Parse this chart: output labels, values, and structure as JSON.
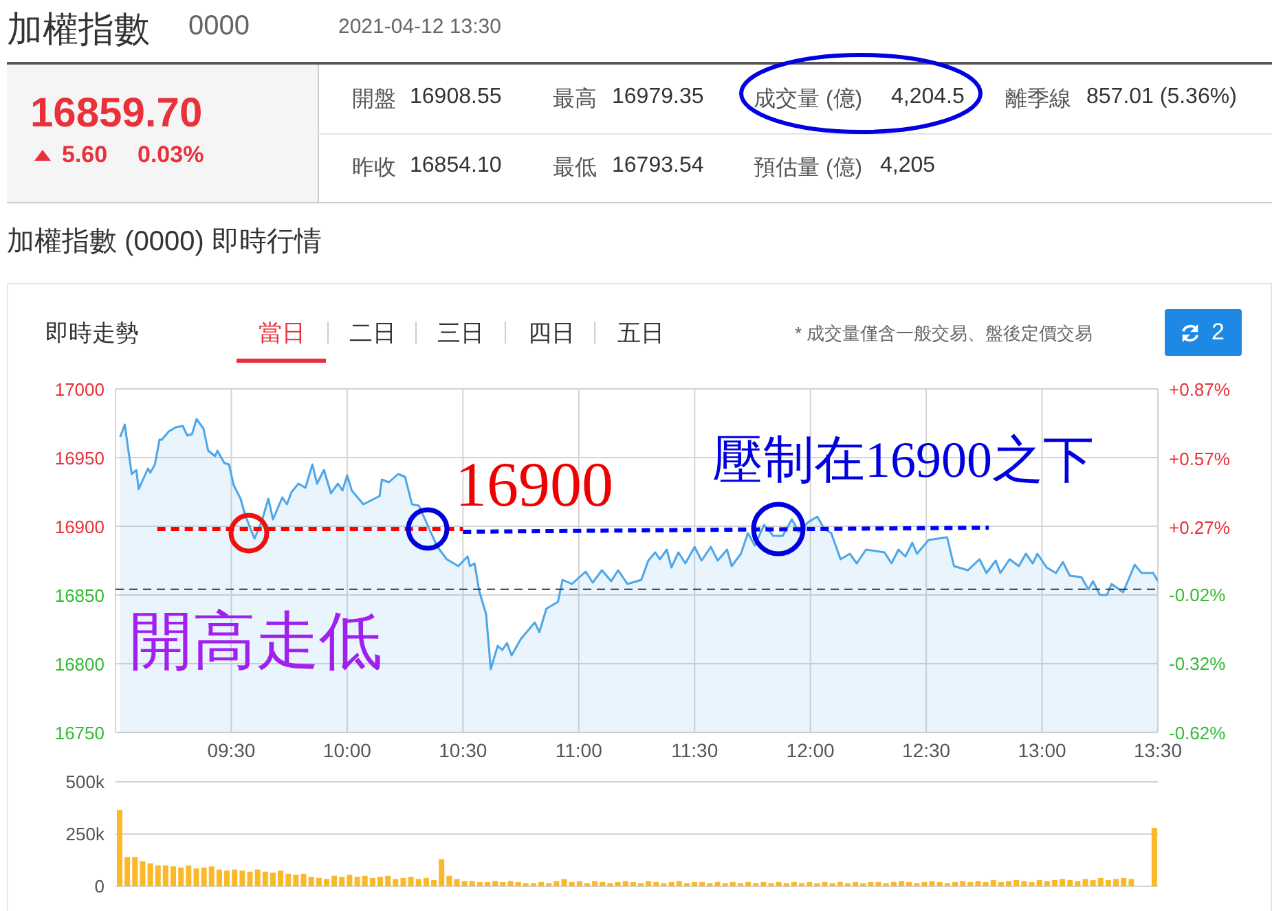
{
  "chart_data": [
    {
      "type": "other",
      "title": "加權指數",
      "subtitle": "加權指數 (0000) 即時行情",
      "annotations": [
        "0000",
        "2021-04-12 13:30",
        "16859.70",
        "5.60",
        "0.03%",
        "開盤",
        "16908.55",
        "最高",
        "16979.35",
        "成交量 (億)",
        "4,204.5",
        "離季線",
        "857.01 (5.36%)",
        "昨收",
        "16854.10",
        "最低",
        "16793.54",
        "預估量 (億)",
        "4,205"
      ]
    },
    {
      "type": "area",
      "title": "即時走勢",
      "annotations": [
        "當日",
        "二日",
        "三日",
        "四日",
        "五日",
        "* 成交量僅含一般交易、盤後定價交易",
        "2",
        "16900",
        "壓制在16900之下",
        "開高走低"
      ],
      "xlim": [
        9,
        13.5
      ],
      "xticks": [
        {
          "value": 9.5,
          "label": "09:30"
        },
        {
          "value": 10,
          "label": "10:00"
        },
        {
          "value": 10.5,
          "label": "10:30"
        },
        {
          "value": 11,
          "label": "11:00"
        },
        {
          "value": 11.5,
          "label": "11:30"
        },
        {
          "value": 12,
          "label": "12:00"
        },
        {
          "value": 12.5,
          "label": "12:30"
        },
        {
          "value": 13,
          "label": "13:00"
        },
        {
          "value": 13.5,
          "label": "13:30"
        }
      ],
      "ylim": [
        16750,
        17000
      ],
      "yticks": [
        16750,
        16800,
        16850,
        16900,
        16950,
        17000
      ],
      "y2lim": [
        -0.62,
        0.87
      ],
      "y2ticks": [
        {
          "value": -0.62,
          "label": "-0.62%"
        },
        {
          "value": -0.32,
          "label": "-0.32%"
        },
        {
          "value": -0.02,
          "label": "-0.02%"
        },
        {
          "value": 0.27,
          "label": "+0.27%"
        },
        {
          "value": 0.57,
          "label": "+0.57%"
        },
        {
          "value": 0.87,
          "label": "+0.87%"
        }
      ],
      "grid": true,
      "ref_lines": [
        {
          "axis": "y",
          "value": 16854.1,
          "color": "#333333",
          "line_style": "dashed"
        }
      ],
      "series": [
        {
          "type": "area",
          "color": "#4da6e8",
          "x": [
            9.02,
            9.04,
            9.07,
            9.09,
            9.1,
            9.14,
            9.15,
            9.17,
            9.19,
            9.2,
            9.23,
            9.26,
            9.29,
            9.31,
            9.33,
            9.35,
            9.38,
            9.4,
            9.43,
            9.44,
            9.47,
            9.49,
            9.51,
            9.54,
            9.56,
            9.6,
            9.63,
            9.66,
            9.68,
            9.72,
            9.74,
            9.76,
            9.79,
            9.82,
            9.85,
            9.87,
            9.9,
            9.93,
            9.96,
            9.98,
            10.0,
            10.02,
            10.07,
            10.14,
            10.15,
            10.18,
            10.22,
            10.25,
            10.28,
            10.31,
            10.36,
            10.39,
            10.43,
            10.48,
            10.52,
            10.53,
            10.55,
            10.57,
            10.6,
            10.62,
            10.65,
            10.67,
            10.69,
            10.71,
            10.75,
            10.81,
            10.83,
            10.86,
            10.91,
            10.93,
            10.97,
            11.03,
            11.06,
            11.1,
            11.14,
            11.17,
            11.21,
            11.27,
            11.3,
            11.33,
            11.35,
            11.38,
            11.4,
            11.43,
            11.46,
            11.5,
            11.53,
            11.57,
            11.6,
            11.64,
            11.66,
            11.7,
            11.73,
            11.76,
            11.8,
            11.84,
            11.88,
            11.92,
            11.95,
            11.99,
            12.03,
            12.06,
            12.09,
            12.13,
            12.17,
            12.2,
            12.24,
            12.32,
            12.35,
            12.38,
            12.41,
            12.44,
            12.46,
            12.49,
            12.51,
            12.59,
            12.62,
            12.68,
            12.73,
            12.76,
            12.8,
            12.82,
            12.86,
            12.9,
            12.93,
            12.96,
            12.98,
            13.02,
            13.06,
            13.09,
            13.12,
            13.17,
            13.2,
            13.22,
            13.25,
            13.28,
            13.3,
            13.35,
            13.4,
            13.43,
            13.48,
            13.5
          ],
          "values": [
            16965,
            16974,
            16938,
            16941,
            16927,
            16942,
            16939,
            16945,
            16963,
            16963,
            16969,
            16972,
            16973,
            16966,
            16967,
            16978,
            16971,
            16955,
            16951,
            16955,
            16946,
            16945,
            16930,
            16920,
            16908,
            16891,
            16903,
            16920,
            16905,
            16921,
            16916,
            16925,
            16931,
            16928,
            16945,
            16931,
            16941,
            16924,
            16931,
            16926,
            16937,
            16926,
            16916,
            16922,
            16934,
            16932,
            16938,
            16936,
            16916,
            16915,
            16896,
            16885,
            16876,
            16871,
            16878,
            16871,
            16873,
            16853,
            16836,
            16796,
            16813,
            16810,
            16815,
            16806,
            16818,
            16830,
            16823,
            16840,
            16845,
            16861,
            16858,
            16867,
            16859,
            16868,
            16860,
            16868,
            16858,
            16861,
            16875,
            16881,
            16876,
            16883,
            16870,
            16881,
            16873,
            16885,
            16875,
            16885,
            16875,
            16883,
            16871,
            16880,
            16895,
            16886,
            16901,
            16893,
            16893,
            16905,
            16896,
            16903,
            16907,
            16898,
            16895,
            16876,
            16880,
            16873,
            16883,
            16881,
            16873,
            16883,
            16878,
            16888,
            16880,
            16886,
            16890,
            16892,
            16871,
            16868,
            16876,
            16866,
            16875,
            16866,
            16876,
            16871,
            16880,
            16873,
            16880,
            16870,
            16866,
            16874,
            16864,
            16863,
            16854,
            16860,
            16850,
            16850,
            16858,
            16852,
            16872,
            16866,
            16866,
            16860
          ]
        },
        {
          "type": "line",
          "color": "#ff0000",
          "line_style": "dashed",
          "x": [
            9.18,
            10.5
          ],
          "values": [
            16898,
            16898
          ]
        },
        {
          "type": "line",
          "color": "#0000ff",
          "line_style": "dashed",
          "x": [
            10.5,
            12.77
          ],
          "values": [
            16896,
            16899
          ]
        }
      ]
    },
    {
      "type": "bar",
      "color": "#fbb829",
      "tick_labels": "y",
      "grid": "y",
      "ylim": [
        0,
        500000
      ],
      "yticks": [
        0,
        {
          "value": 250000,
          "label": "250k"
        },
        {
          "value": 500000,
          "label": "500k"
        }
      ],
      "categories": [
        null,
        null,
        null,
        null,
        null,
        null,
        null,
        null,
        null,
        null,
        null,
        null,
        null,
        null,
        null,
        null,
        null,
        null,
        null,
        null,
        null,
        null,
        null,
        null,
        null,
        null,
        null,
        null,
        null,
        null,
        null,
        null,
        null,
        null,
        null,
        null,
        null,
        null,
        null,
        null,
        null,
        null,
        null,
        null,
        null,
        null,
        null,
        null,
        null,
        null,
        null,
        null,
        null,
        null,
        null,
        null,
        null,
        null,
        null,
        null,
        null,
        null,
        null,
        null,
        null,
        null,
        null,
        null,
        null,
        null,
        null,
        null,
        null,
        null,
        null,
        null,
        null,
        null,
        null,
        null,
        null,
        null,
        null,
        null,
        null,
        null,
        null,
        null,
        null,
        null,
        null,
        null,
        null,
        null,
        null,
        null,
        null,
        null,
        null,
        null,
        null,
        null,
        null,
        null,
        null,
        null,
        null,
        null,
        null,
        null,
        null,
        null,
        null,
        null,
        null,
        null,
        null,
        null,
        null,
        null,
        null,
        null,
        null,
        null,
        null,
        null,
        null,
        null,
        null,
        null,
        null,
        null,
        null,
        null,
        null,
        null
      ],
      "values": [
        365000,
        140000,
        140000,
        120000,
        110000,
        100000,
        100000,
        95000,
        90000,
        100000,
        85000,
        90000,
        95000,
        80000,
        75000,
        80000,
        75000,
        70000,
        80000,
        70000,
        65000,
        75000,
        60000,
        55000,
        60000,
        45000,
        40000,
        35000,
        50000,
        45000,
        55000,
        45000,
        50000,
        40000,
        45000,
        50000,
        35000,
        40000,
        45000,
        35000,
        40000,
        30000,
        130000,
        50000,
        35000,
        25000,
        25000,
        20000,
        20000,
        25000,
        20000,
        25000,
        20000,
        15000,
        15000,
        20000,
        15000,
        25000,
        35000,
        20000,
        25000,
        15000,
        25000,
        20000,
        15000,
        20000,
        25000,
        20000,
        15000,
        25000,
        20000,
        15000,
        20000,
        25000,
        15000,
        20000,
        20000,
        15000,
        20000,
        15000,
        20000,
        15000,
        20000,
        15000,
        20000,
        15000,
        20000,
        15000,
        20000,
        15000,
        20000,
        15000,
        20000,
        15000,
        20000,
        15000,
        20000,
        15000,
        20000,
        20000,
        15000,
        20000,
        25000,
        20000,
        15000,
        20000,
        25000,
        20000,
        15000,
        20000,
        25000,
        20000,
        25000,
        20000,
        30000,
        20000,
        25000,
        30000,
        25000,
        20000,
        30000,
        25000,
        30000,
        35000,
        30000,
        25000,
        35000,
        30000,
        40000,
        30000,
        35000,
        40000,
        35000,
        null,
        null,
        280000
      ]
    }
  ]
}
